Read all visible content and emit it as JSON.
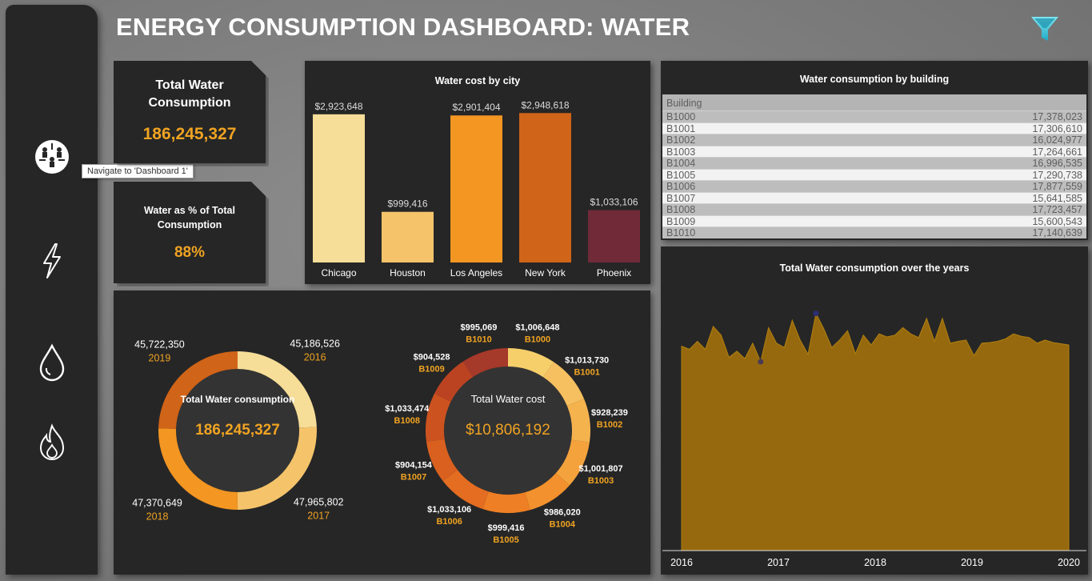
{
  "header": {
    "title": "ENERGY CONSUMPTION DASHBOARD: WATER"
  },
  "sidebar": {
    "items": [
      {
        "icon": "dashboard-people-icon"
      },
      {
        "icon": "lightning-icon"
      },
      {
        "icon": "water-drop-icon"
      },
      {
        "icon": "flame-icon"
      }
    ],
    "tooltip": "Navigate to 'Dashboard 1'"
  },
  "kpis": {
    "total": {
      "label": "Total Water Consumption",
      "value": "186,245,327"
    },
    "percent": {
      "label": "Water as % of Total Consumption",
      "value": "88%"
    }
  },
  "colors": {
    "accent": "#f0a322",
    "panel": "#262626",
    "area": "#97690e"
  },
  "cost_by_city": {
    "title": "Water cost by city",
    "chart_data": {
      "type": "bar",
      "title": "Water cost by city",
      "categories": [
        "Chicago",
        "Houston",
        "Los Angeles",
        "New York",
        "Phoenix"
      ],
      "values": [
        2923648,
        999416,
        2901404,
        2948618,
        1033106
      ],
      "labels": [
        "$2,923,648",
        "$999,416",
        "$2,901,404",
        "$2,948,618",
        "$1,033,106"
      ],
      "colors": [
        "#f6dd98",
        "#f5c46a",
        "#f39622",
        "#d06418",
        "#712a38"
      ],
      "ylim": [
        0,
        3000000
      ]
    }
  },
  "consumption_by_building": {
    "title": "Water consumption by building",
    "column": "Building",
    "rows": [
      {
        "building": "B1000",
        "value": "17,378,023"
      },
      {
        "building": "B1001",
        "value": "17,306,610"
      },
      {
        "building": "B1002",
        "value": "16,024,977"
      },
      {
        "building": "B1003",
        "value": "17,264,661"
      },
      {
        "building": "B1004",
        "value": "16,996,535"
      },
      {
        "building": "B1005",
        "value": "17,290,738"
      },
      {
        "building": "B1006",
        "value": "17,877,559"
      },
      {
        "building": "B1007",
        "value": "15,641,585"
      },
      {
        "building": "B1008",
        "value": "17,723,457"
      },
      {
        "building": "B1009",
        "value": "15,600,543"
      },
      {
        "building": "B1010",
        "value": "17,140,639"
      }
    ]
  },
  "donut_years": {
    "center_label": "Total Water consumption",
    "center_value": "186,245,327",
    "chart_data": {
      "type": "pie",
      "categories": [
        "2016",
        "2017",
        "2018",
        "2019"
      ],
      "values": [
        45186526,
        47965802,
        47370649,
        45722350
      ],
      "labels": [
        "45,186,526",
        "47,965,802",
        "47,370,649",
        "45,722,350"
      ],
      "colors": [
        "#f6dd98",
        "#f5c46a",
        "#f39622",
        "#d06418"
      ]
    }
  },
  "donut_cost": {
    "center_label": "Total Water cost",
    "center_value": "$10,806,192",
    "chart_data": {
      "type": "pie",
      "categories": [
        "B1000",
        "B1001",
        "B1002",
        "B1003",
        "B1004",
        "B1005",
        "B1006",
        "B1007",
        "B1008",
        "B1009",
        "B1010"
      ],
      "values": [
        1006648,
        1013730,
        928239,
        1001807,
        986020,
        999416,
        1033106,
        904154,
        1033474,
        904528,
        995069
      ],
      "labels": [
        "$1,006,648",
        "$1,013,730",
        "$928,239",
        "$1,001,807",
        "$986,020",
        "$999,416",
        "$1,033,106",
        "$904,154",
        "$1,033,474",
        "$904,528",
        "$995,069"
      ],
      "colors": [
        "#f6cf6b",
        "#f6c060",
        "#f5b34e",
        "#f4a23c",
        "#f2912d",
        "#ef7f24",
        "#e56d21",
        "#d9601f",
        "#cc531f",
        "#bb4322",
        "#a5392a"
      ]
    }
  },
  "area_chart": {
    "title": "Total Water consumption over the years",
    "chart_data": {
      "type": "area",
      "x_ticks": [
        "2016",
        "2017",
        "2018",
        "2019",
        "2020"
      ],
      "values": [
        3.3,
        3.25,
        3.38,
        3.25,
        3.62,
        3.48,
        3.12,
        3.22,
        3.1,
        3.35,
        3.05,
        3.6,
        3.35,
        3.28,
        3.72,
        3.4,
        3.17,
        3.83,
        3.58,
        3.28,
        3.4,
        3.55,
        3.18,
        3.48,
        3.32,
        3.5,
        3.45,
        3.48,
        3.6,
        3.5,
        3.44,
        3.75,
        3.38,
        3.75,
        3.35,
        3.38,
        3.4,
        3.15,
        3.35,
        3.36,
        3.38,
        3.42,
        3.5,
        3.46,
        3.44,
        3.35,
        3.4,
        3.36,
        3.34,
        3.32
      ],
      "max_marker_index": 17,
      "min_marker_index": 10
    }
  }
}
